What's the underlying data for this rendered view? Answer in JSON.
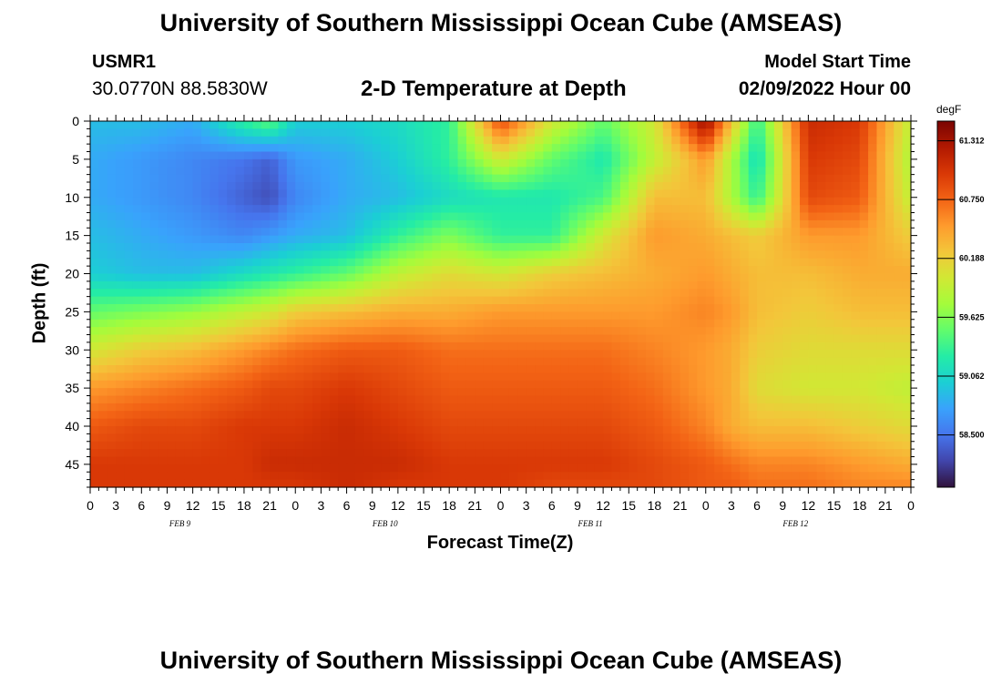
{
  "header": {
    "title": "University of Southern Mississippi Ocean Cube (AMSEAS)",
    "station_id": "USMR1",
    "coordinates": "30.0770N  88.5830W",
    "subtitle": "2-D Temperature at Depth",
    "model_start_label": "Model Start Time",
    "model_start_value": "02/09/2022 Hour 00"
  },
  "footer": {
    "title": "University of Southern Mississippi Ocean Cube (AMSEAS)"
  },
  "chart_data": {
    "type": "heatmap",
    "title": "2-D Temperature at Depth",
    "xlabel": "Forecast Time(Z)",
    "ylabel": "Depth (ft)",
    "units": "degF",
    "x_hours": [
      0,
      96
    ],
    "x_tick_labels": [
      "0",
      "3",
      "6",
      "9",
      "12",
      "15",
      "18",
      "21",
      "0",
      "3",
      "6",
      "9",
      "12",
      "15",
      "18",
      "21",
      "0",
      "3",
      "6",
      "9",
      "12",
      "15",
      "18",
      "21",
      "0",
      "3",
      "6",
      "9",
      "12",
      "15",
      "18",
      "21",
      "0"
    ],
    "date_labels": [
      {
        "label": "FEB 9",
        "hour": 10.5
      },
      {
        "label": "FEB 10",
        "hour": 34.5
      },
      {
        "label": "FEB 11",
        "hour": 58.5
      },
      {
        "label": "FEB 12",
        "hour": 82.5
      }
    ],
    "y_range_ft": [
      0,
      48
    ],
    "y_ticks": [
      0,
      5,
      10,
      15,
      20,
      25,
      30,
      35,
      40,
      45
    ],
    "colorbar": {
      "min": 58.0,
      "max": 61.5,
      "tick_values": [
        61.312,
        60.75,
        60.188,
        59.625,
        59.062,
        58.5
      ],
      "tick_labels": [
        "61.312",
        "60.750",
        "60.188",
        "59.625",
        "59.062",
        "58.500"
      ],
      "colors": [
        "#30123b",
        "#4145ab",
        "#4675ed",
        "#39a2fc",
        "#1bcfd4",
        "#24eca6",
        "#61fc6c",
        "#a4fc3b",
        "#d1e834",
        "#f3c63a",
        "#fe9b2d",
        "#f36315",
        "#d93806",
        "#b11901",
        "#7a0402"
      ]
    },
    "times_h": [
      0,
      6,
      12,
      18,
      21,
      24,
      30,
      36,
      42,
      48,
      54,
      60,
      66,
      72,
      75,
      78,
      84,
      90,
      96
    ],
    "depths_ft": [
      0,
      5,
      10,
      15,
      20,
      25,
      30,
      35,
      40,
      45,
      48
    ],
    "temperature_degF": [
      [
        58.9,
        58.9,
        58.8,
        59.3,
        59.5,
        59.0,
        59.0,
        59.1,
        59.3,
        60.9,
        60.0,
        59.5,
        60.0,
        61.4,
        60.3,
        59.3,
        61.1,
        61.0,
        59.9
      ],
      [
        58.8,
        58.7,
        58.6,
        58.5,
        58.4,
        58.7,
        58.8,
        59.0,
        59.3,
        60.0,
        59.5,
        59.2,
        59.9,
        60.5,
        59.8,
        59.1,
        61.0,
        60.9,
        59.8
      ],
      [
        58.8,
        58.7,
        58.6,
        58.4,
        58.3,
        58.6,
        58.8,
        58.9,
        59.1,
        59.2,
        59.2,
        59.4,
        60.3,
        60.3,
        59.8,
        59.3,
        60.9,
        60.8,
        59.9
      ],
      [
        58.9,
        58.8,
        58.7,
        58.6,
        58.7,
        58.8,
        58.9,
        59.3,
        59.6,
        59.3,
        59.3,
        60.0,
        60.5,
        60.4,
        60.3,
        60.2,
        60.5,
        60.5,
        60.2
      ],
      [
        59.0,
        58.9,
        58.9,
        59.1,
        59.2,
        59.3,
        59.5,
        59.9,
        60.1,
        60.0,
        60.2,
        60.3,
        60.4,
        60.5,
        60.4,
        60.3,
        60.3,
        60.4,
        60.4
      ],
      [
        59.5,
        59.6,
        59.7,
        59.9,
        60.0,
        60.2,
        60.3,
        60.4,
        60.4,
        60.5,
        60.5,
        60.5,
        60.5,
        60.6,
        60.5,
        60.3,
        60.2,
        60.3,
        60.3
      ],
      [
        60.0,
        60.2,
        60.3,
        60.5,
        60.6,
        60.7,
        60.8,
        60.8,
        60.7,
        60.7,
        60.7,
        60.7,
        60.6,
        60.5,
        60.4,
        60.2,
        60.1,
        60.1,
        60.1
      ],
      [
        60.5,
        60.6,
        60.7,
        60.8,
        60.9,
        60.9,
        61.0,
        60.9,
        60.8,
        60.8,
        60.8,
        60.8,
        60.7,
        60.5,
        60.4,
        60.1,
        60.0,
        60.0,
        59.9
      ],
      [
        60.8,
        60.9,
        60.9,
        61.0,
        61.0,
        61.0,
        61.1,
        61.0,
        60.9,
        60.9,
        60.9,
        60.9,
        60.8,
        60.6,
        60.4,
        60.3,
        60.3,
        60.2,
        60.1
      ],
      [
        61.0,
        61.0,
        61.0,
        61.0,
        61.1,
        61.1,
        61.1,
        61.1,
        61.0,
        61.0,
        61.0,
        61.0,
        60.9,
        60.8,
        60.7,
        60.6,
        60.6,
        60.5,
        60.4
      ],
      [
        61.0,
        61.0,
        61.0,
        61.0,
        61.0,
        61.0,
        61.1,
        61.0,
        61.0,
        61.0,
        60.9,
        60.9,
        60.9,
        60.8,
        60.8,
        60.7,
        60.7,
        60.6,
        60.6
      ]
    ]
  }
}
